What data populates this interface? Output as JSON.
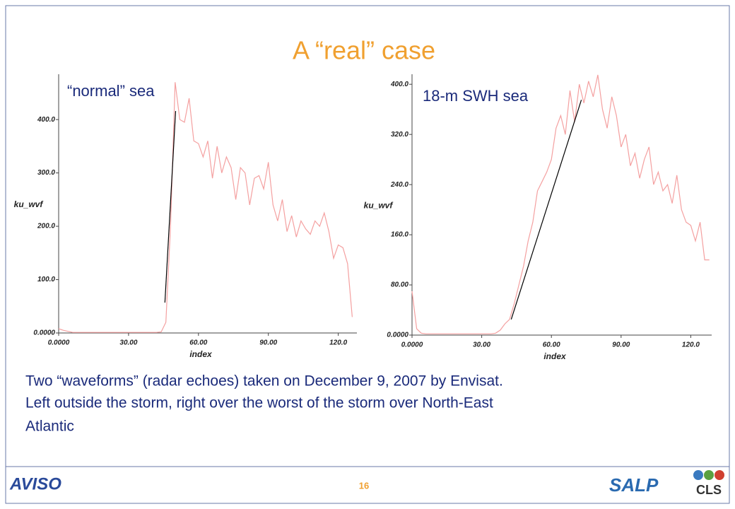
{
  "title": "A “real” case",
  "caption": [
    "Two “waveforms” (radar echoes) taken on December 9, 2007 by Envisat.",
    "Left outside the storm, right over the worst of the storm over North-East",
    "Atlantic"
  ],
  "page_number": "16",
  "logos": [
    "AVISO",
    "SALP",
    "CLS"
  ],
  "chart_data": [
    {
      "type": "line",
      "annotation": "“normal” sea",
      "xlabel": "index",
      "ylabel": "ku_wvf",
      "color": "#f4a0a0",
      "x": [
        0,
        2,
        4,
        6,
        8,
        10,
        12,
        14,
        16,
        18,
        20,
        22,
        24,
        26,
        28,
        30,
        32,
        34,
        36,
        38,
        40,
        42,
        44,
        46,
        48,
        50,
        52,
        54,
        56,
        58,
        60,
        62,
        64,
        66,
        68,
        70,
        72,
        74,
        76,
        78,
        80,
        82,
        84,
        86,
        88,
        90,
        92,
        94,
        96,
        98,
        100,
        102,
        104,
        106,
        108,
        110,
        112,
        114,
        116,
        118,
        120,
        122,
        124,
        126
      ],
      "values": [
        8,
        5,
        3,
        1,
        1,
        1,
        1,
        1,
        1,
        1,
        1,
        1,
        1,
        1,
        1,
        1,
        1,
        1,
        1,
        1,
        1,
        1,
        2,
        20,
        200,
        470,
        400,
        395,
        440,
        360,
        355,
        330,
        360,
        290,
        350,
        300,
        330,
        310,
        250,
        310,
        300,
        240,
        290,
        295,
        270,
        320,
        240,
        210,
        250,
        190,
        220,
        180,
        210,
        195,
        185,
        210,
        200,
        225,
        190,
        140,
        165,
        160,
        130,
        30
      ],
      "fit_line": {
        "x": [
          45.6,
          50.2
        ],
        "y": [
          57,
          416
        ]
      },
      "xlim": [
        0,
        128
      ],
      "ylim": [
        0,
        485
      ],
      "xticks": [
        {
          "value": 0,
          "label": "0.0000"
        },
        {
          "value": 30,
          "label": "30.00"
        },
        {
          "value": 60,
          "label": "60.00"
        },
        {
          "value": 90,
          "label": "90.00"
        },
        {
          "value": 120,
          "label": "120.0"
        }
      ],
      "yticks": [
        {
          "value": 0,
          "label": "0.0000"
        },
        {
          "value": 100,
          "label": "100.0"
        },
        {
          "value": 200,
          "label": "200.0"
        },
        {
          "value": 300,
          "label": "300.0"
        },
        {
          "value": 400,
          "label": "400.0"
        }
      ]
    },
    {
      "type": "line",
      "annotation": "18-m SWH sea",
      "xlabel": "index",
      "ylabel": "ku_wvf",
      "color": "#f4a0a0",
      "x": [
        0,
        2,
        4,
        6,
        8,
        10,
        12,
        14,
        16,
        18,
        20,
        22,
        24,
        26,
        28,
        30,
        32,
        34,
        36,
        38,
        40,
        42,
        44,
        46,
        48,
        50,
        52,
        54,
        56,
        58,
        60,
        62,
        64,
        66,
        68,
        70,
        72,
        74,
        76,
        78,
        80,
        82,
        84,
        86,
        88,
        90,
        92,
        94,
        96,
        98,
        100,
        102,
        104,
        106,
        108,
        110,
        112,
        114,
        116,
        118,
        120,
        122,
        124,
        126,
        128
      ],
      "values": [
        70,
        10,
        3,
        2,
        2,
        2,
        2,
        2,
        2,
        2,
        2,
        2,
        2,
        2,
        2,
        2,
        2,
        2,
        3,
        8,
        18,
        25,
        50,
        80,
        110,
        150,
        180,
        230,
        245,
        260,
        280,
        330,
        350,
        320,
        390,
        340,
        400,
        370,
        405,
        380,
        415,
        360,
        330,
        380,
        350,
        300,
        320,
        270,
        290,
        250,
        280,
        300,
        240,
        260,
        230,
        240,
        210,
        255,
        200,
        180,
        175,
        150,
        180,
        120,
        120
      ],
      "fit_line": {
        "x": [
          42.7,
          72.9
        ],
        "y": [
          25,
          375
        ]
      },
      "xlim": [
        0,
        129
      ],
      "ylim": [
        0,
        416
      ],
      "xticks": [
        {
          "value": 0,
          "label": "0.0000"
        },
        {
          "value": 30,
          "label": "30.00"
        },
        {
          "value": 60,
          "label": "60.00"
        },
        {
          "value": 90,
          "label": "90.00"
        },
        {
          "value": 120,
          "label": "120.0"
        }
      ],
      "yticks": [
        {
          "value": 0,
          "label": "0.0000"
        },
        {
          "value": 80,
          "label": "80.00"
        },
        {
          "value": 160,
          "label": "160.0"
        },
        {
          "value": 240,
          "label": "240.0"
        },
        {
          "value": 320,
          "label": "320.0"
        },
        {
          "value": 400,
          "label": "400.0"
        }
      ]
    }
  ]
}
